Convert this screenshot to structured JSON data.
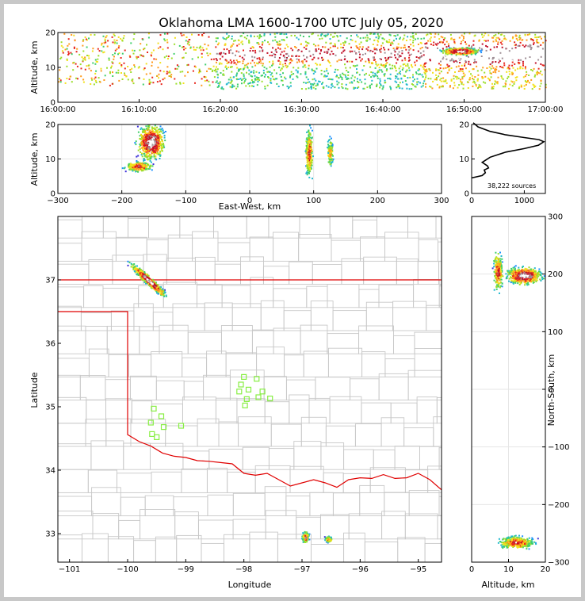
{
  "title": "Oklahoma LMA 1600-1700 UTC July 05, 2020",
  "colors": {
    "density_ramp": [
      "#3a2fd8",
      "#1e90ff",
      "#21b8d0",
      "#3fcf6a",
      "#9bde2a",
      "#f2e11c",
      "#ff9b1c",
      "#e8261c",
      "#c0102a",
      "#9f8f96",
      "#ffffff"
    ],
    "state_border": "#e00000",
    "county_lines": "#c8c8c8",
    "stations": "#88ee44"
  },
  "chart_data": [
    {
      "type": "heatmap",
      "name": "time-height",
      "xlabel": "",
      "ylabel": "Altitude, km",
      "xlim": [
        "16:00:00",
        "17:00:00"
      ],
      "xticks": [
        "16:00:00",
        "16:10:00",
        "16:20:00",
        "16:30:00",
        "16:40:00",
        "16:50:00",
        "17:00:00"
      ],
      "ylim": [
        0,
        20
      ],
      "yticks": [
        "0",
        "10",
        "20"
      ]
    },
    {
      "type": "heatmap",
      "name": "east-west-height",
      "xlabel": "East-West, km",
      "ylabel": "Altitude, km",
      "xlim": [
        -300,
        300
      ],
      "xticks": [
        "−300",
        "−200",
        "−100",
        "0",
        "100",
        "200",
        "300"
      ],
      "ylim": [
        0,
        20
      ],
      "yticks": [
        "0",
        "10",
        "20"
      ]
    },
    {
      "type": "line",
      "name": "altitude-histogram",
      "xlim": [
        0,
        1400
      ],
      "xticks": [
        "0",
        "1000"
      ],
      "ylim": [
        0,
        20
      ],
      "yticks": [
        "0",
        "10",
        "20"
      ],
      "source_count_label": "38,222 sources",
      "profile": {
        "x": [
          0,
          200,
          260,
          240,
          320,
          300,
          200,
          350,
          650,
          1000,
          1270,
          1370,
          1280,
          1000,
          650,
          350,
          120,
          30
        ],
        "y": [
          4.5,
          5.2,
          6,
          6.8,
          7.4,
          8,
          9,
          10.5,
          12,
          13,
          14,
          15,
          15.6,
          16.2,
          17,
          18,
          19.3,
          20.5
        ]
      }
    },
    {
      "type": "heatmap",
      "name": "plan-view",
      "xlabel": "Longitude",
      "ylabel": "Latitude",
      "xlim": [
        -101.2,
        -94.6
      ],
      "xticks": [
        "−101",
        "−100",
        "−99",
        "−98",
        "−97",
        "−96",
        "−95"
      ],
      "ylim": [
        32.55,
        38.0
      ],
      "yticks": [
        "33",
        "34",
        "35",
        "36",
        "37"
      ]
    },
    {
      "type": "heatmap",
      "name": "north-south-height",
      "xlabel": "Altitude, km",
      "ylabel": "North-South, km",
      "xlim": [
        0,
        20
      ],
      "xticks": [
        "0",
        "10",
        "20"
      ],
      "ylim": [
        -300,
        300
      ],
      "yticks": [
        "−300",
        "−200",
        "−100",
        "0",
        "100",
        "200",
        "300"
      ]
    }
  ]
}
